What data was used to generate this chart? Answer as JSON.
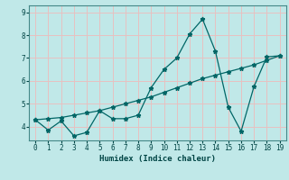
{
  "title": "",
  "xlabel": "Humidex (Indice chaleur)",
  "background_color": "#c0e8e8",
  "grid_color": "#e8c0c0",
  "line_color": "#006666",
  "marker": "*",
  "xlim": [
    -0.5,
    19.5
  ],
  "ylim": [
    3.4,
    9.3
  ],
  "xticks": [
    0,
    1,
    2,
    3,
    4,
    5,
    6,
    7,
    8,
    9,
    10,
    11,
    12,
    13,
    14,
    15,
    16,
    17,
    18,
    19
  ],
  "yticks": [
    4,
    5,
    6,
    7,
    8,
    9
  ],
  "series1_x": [
    0,
    1,
    2,
    3,
    4,
    5,
    6,
    7,
    8,
    9,
    10,
    11,
    12,
    13,
    14,
    15,
    16,
    17,
    18,
    19
  ],
  "series1_y": [
    4.3,
    3.85,
    4.25,
    3.6,
    3.75,
    4.7,
    4.35,
    4.35,
    4.5,
    5.7,
    6.5,
    7.0,
    8.05,
    8.7,
    7.3,
    4.85,
    3.8,
    5.75,
    7.05,
    7.1
  ],
  "series2_x": [
    0,
    1,
    2,
    3,
    4,
    5,
    6,
    7,
    8,
    9,
    10,
    11,
    12,
    13,
    14,
    15,
    16,
    17,
    18,
    19
  ],
  "series2_y": [
    4.3,
    4.35,
    4.4,
    4.5,
    4.6,
    4.7,
    4.85,
    5.0,
    5.15,
    5.3,
    5.5,
    5.7,
    5.9,
    6.1,
    6.25,
    6.4,
    6.55,
    6.7,
    6.9,
    7.1
  ]
}
